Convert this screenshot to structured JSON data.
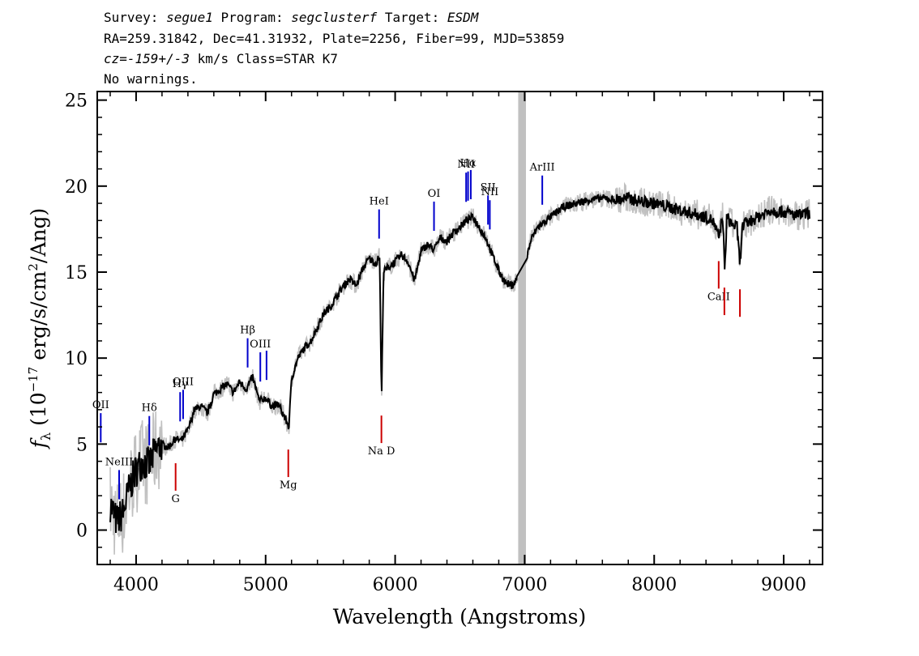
{
  "header": {
    "survey_label": "Survey:",
    "survey_value": "segue1",
    "program_label": "Program:",
    "program_value": "segclusterf",
    "target_label": "Target:",
    "target_value": "ESDM",
    "line2": "RA=259.31842, Dec=41.31932, Plate=2256, Fiber=99, MJD=53859",
    "cz_label": "cz=",
    "cz_value": "-159+/-3",
    "cz_rest": " km/s Class=STAR K7",
    "line4": "No warnings."
  },
  "chart_data": {
    "type": "line",
    "xlabel": "Wavelength (Angstroms)",
    "ylabel": "f_λ (10^-17 erg/s/cm^2/Ang)",
    "xlim": [
      3700,
      9300
    ],
    "ylim": [
      -2,
      25.5
    ],
    "xticks": [
      4000,
      5000,
      6000,
      7000,
      8000,
      9000
    ],
    "yticks": [
      0,
      5,
      10,
      15,
      20,
      25
    ],
    "colors": {
      "flux": "#000000",
      "error_band": "#c0c0c0",
      "emission": "#0000cc",
      "absorption": "#cc0000",
      "masked": "#c0c0c0"
    },
    "masked_region": [
      6950,
      7010
    ],
    "series": [
      {
        "x": [
          3800,
          3850,
          3900,
          3950,
          4000,
          4050,
          4100,
          4150,
          4200,
          4250,
          4300,
          4350,
          4400,
          4450,
          4500,
          4550,
          4600,
          4650,
          4700,
          4750,
          4800,
          4850,
          4900,
          4950,
          5000,
          5050,
          5100,
          5150,
          5180,
          5200,
          5250,
          5300,
          5350,
          5400,
          5450,
          5500,
          5550,
          5600,
          5650,
          5700,
          5750,
          5800,
          5850,
          5880,
          5895,
          5910,
          5950,
          6000,
          6050,
          6100,
          6150,
          6200,
          6250,
          6300,
          6350,
          6400,
          6450,
          6500,
          6550,
          6600,
          6650,
          6700,
          6750,
          6800,
          6850,
          6900,
          6940,
          7020,
          7050,
          7100,
          7150,
          7200,
          7250,
          7300,
          7400,
          7500,
          7600,
          7700,
          7800,
          7900,
          8000,
          8100,
          8200,
          8300,
          8400,
          8450,
          8500,
          8530,
          8545,
          8560,
          8600,
          8640,
          8662,
          8680,
          8700,
          8800,
          8900,
          9000,
          9100,
          9200
        ],
        "y": [
          1.5,
          0.5,
          1.0,
          2.5,
          3.5,
          4.0,
          3.8,
          4.6,
          5.0,
          4.8,
          5.3,
          5.2,
          5.8,
          7.0,
          7.2,
          6.8,
          7.9,
          8.2,
          8.5,
          8.0,
          8.6,
          8.2,
          8.9,
          7.5,
          7.7,
          7.2,
          7.3,
          6.5,
          6.0,
          8.8,
          10.0,
          10.6,
          11.0,
          11.8,
          12.6,
          13.0,
          13.6,
          14.2,
          14.6,
          14.2,
          15.2,
          15.8,
          15.5,
          15.9,
          7.5,
          15.0,
          15.3,
          15.6,
          16.0,
          15.6,
          14.5,
          16.2,
          16.6,
          16.3,
          17.0,
          16.8,
          17.3,
          17.6,
          18.0,
          18.2,
          17.6,
          17.0,
          16.0,
          15.1,
          14.4,
          14.2,
          14.6,
          16.0,
          16.9,
          17.6,
          17.9,
          18.2,
          18.5,
          18.8,
          19.0,
          19.2,
          19.3,
          19.2,
          19.3,
          19.1,
          19.0,
          18.8,
          18.6,
          18.4,
          18.2,
          18.0,
          17.0,
          18.3,
          14.8,
          18.2,
          17.8,
          17.6,
          15.4,
          17.6,
          17.8,
          18.2,
          18.6,
          18.5,
          18.3,
          18.4
        ]
      }
    ],
    "emission_lines": [
      {
        "label": "OII",
        "wave": 3727
      },
      {
        "label": "NeIII",
        "wave": 3869
      },
      {
        "label": "Hδ",
        "wave": 4102
      },
      {
        "label": "Hγ",
        "wave": 4340
      },
      {
        "label": "OIII",
        "wave": 4363
      },
      {
        "label": "Hβ",
        "wave": 4861
      },
      {
        "label": "OIII",
        "wave": 4959
      },
      {
        "label": "",
        "wave": 5007
      },
      {
        "label": "HeI",
        "wave": 5876
      },
      {
        "label": "OI",
        "wave": 6300
      },
      {
        "label": "NII",
        "wave": 6548
      },
      {
        "label": "Hα",
        "wave": 6563
      },
      {
        "label": "",
        "wave": 6584
      },
      {
        "label": "SII",
        "wave": 6717
      },
      {
        "label": "NII",
        "wave": 6731
      },
      {
        "label": "ArIII",
        "wave": 7136
      }
    ],
    "absorption_lines": [
      {
        "label": "G",
        "wave": 4305
      },
      {
        "label": "Mg",
        "wave": 5175
      },
      {
        "label": "Na D",
        "wave": 5894
      },
      {
        "label": "CaII",
        "wave": 8498
      },
      {
        "label": "",
        "wave": 8542
      },
      {
        "label": "",
        "wave": 8662
      }
    ]
  }
}
